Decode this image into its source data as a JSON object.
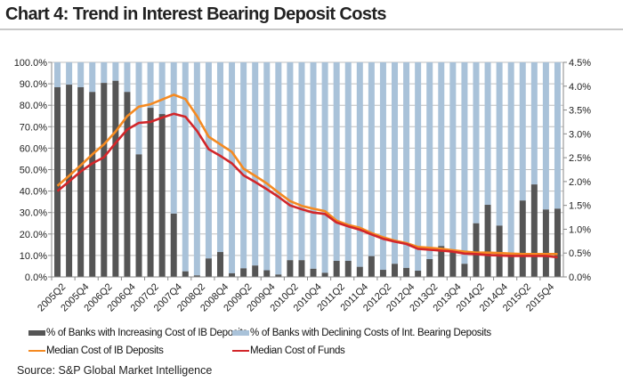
{
  "title": "Chart 4: Trend in Interest Bearing Deposit Costs",
  "source": "Source: S&P Global Market Intelligence",
  "colors": {
    "increasing": "#555555",
    "declining": "#a9c2d9",
    "ib_deposits": "#f58a21",
    "cost_of_funds": "#d2262a",
    "grid": "#bfbfbf"
  },
  "chart_data": {
    "type": "bar",
    "stacked": true,
    "title": "Chart 4: Trend in Interest Bearing Deposit Costs",
    "categories": [
      "2005Q2",
      "2005Q3",
      "2005Q4",
      "2006Q1",
      "2006Q2",
      "2006Q3",
      "2006Q4",
      "2007Q1",
      "2007Q2",
      "2007Q3",
      "2007Q4",
      "2008Q1",
      "2008Q2",
      "2008Q3",
      "2008Q4",
      "2009Q1",
      "2009Q2",
      "2009Q3",
      "2009Q4",
      "2010Q1",
      "2010Q2",
      "2010Q3",
      "2010Q4",
      "2011Q1",
      "2011Q2",
      "2011Q3",
      "2011Q4",
      "2012Q1",
      "2012Q2",
      "2012Q3",
      "2012Q4",
      "2013Q1",
      "2013Q2",
      "2013Q3",
      "2013Q4",
      "2014Q1",
      "2014Q2",
      "2014Q3",
      "2014Q4",
      "2015Q1",
      "2015Q2",
      "2015Q3",
      "2015Q4",
      "2016Q1"
    ],
    "tick_labels": [
      "2005Q2",
      "2005Q4",
      "2006Q2",
      "2006Q4",
      "2007Q2",
      "2007Q4",
      "2008Q2",
      "2008Q4",
      "2009Q2",
      "2009Q4",
      "2010Q2",
      "2010Q4",
      "2011Q2",
      "2011Q4",
      "2012Q2",
      "2012Q4",
      "2013Q2",
      "2013Q4",
      "2014Q2",
      "2014Q4",
      "2015Q2",
      "2015Q4"
    ],
    "y_left": {
      "range": [
        0,
        100
      ],
      "ticks": [
        "0.0%",
        "10.0%",
        "20.0%",
        "30.0%",
        "40.0%",
        "50.0%",
        "60.0%",
        "70.0%",
        "80.0%",
        "90.0%",
        "100.0%"
      ]
    },
    "y_right": {
      "range": [
        0,
        4.5
      ],
      "ticks": [
        "0.0%",
        "0.5%",
        "1.0%",
        "1.5%",
        "2.0%",
        "2.5%",
        "3.0%",
        "3.5%",
        "4.0%",
        "4.5%"
      ]
    },
    "grid": true,
    "legend_position": "bottom",
    "series": [
      {
        "name": "% of Banks with Increasing Cost of IB Deposits",
        "type": "bar",
        "axis": "left",
        "values": [
          88.4,
          89.6,
          88.4,
          86.2,
          90.4,
          91.4,
          86.2,
          57.1,
          78.8,
          75.9,
          29.5,
          2.6,
          0.7,
          8.6,
          11.6,
          1.7,
          4.0,
          5.3,
          3.1,
          1.1,
          7.8,
          7.8,
          3.8,
          1.9,
          7.5,
          7.5,
          4.7,
          9.7,
          3.3,
          6.1,
          4.2,
          2.9,
          8.3,
          14.4,
          12.5,
          6.1,
          25.0,
          33.6,
          23.9,
          11.0,
          35.6,
          43.1,
          31.4,
          31.8
        ]
      },
      {
        "name": "% of Banks with Declining Costs of Int. Bearing Deposits",
        "type": "bar",
        "axis": "left",
        "complement_of_first": true
      },
      {
        "name": "Median Cost of IB Deposits",
        "type": "line",
        "axis": "right",
        "values": [
          1.91,
          2.12,
          2.34,
          2.57,
          2.78,
          3.05,
          3.37,
          3.57,
          3.62,
          3.72,
          3.82,
          3.73,
          3.37,
          2.94,
          2.78,
          2.62,
          2.27,
          2.12,
          1.96,
          1.77,
          1.59,
          1.49,
          1.43,
          1.38,
          1.18,
          1.09,
          1.03,
          0.92,
          0.83,
          0.76,
          0.71,
          0.63,
          0.61,
          0.59,
          0.56,
          0.53,
          0.51,
          0.51,
          0.5,
          0.49,
          0.48,
          0.48,
          0.48,
          0.48
        ]
      },
      {
        "name": "Median Cost of Funds",
        "type": "line",
        "axis": "right",
        "values": [
          1.8,
          2.0,
          2.21,
          2.38,
          2.51,
          2.81,
          3.09,
          3.23,
          3.25,
          3.34,
          3.42,
          3.36,
          3.06,
          2.68,
          2.54,
          2.38,
          2.13,
          1.99,
          1.84,
          1.68,
          1.5,
          1.42,
          1.35,
          1.32,
          1.14,
          1.06,
          0.99,
          0.89,
          0.8,
          0.74,
          0.69,
          0.59,
          0.57,
          0.55,
          0.53,
          0.49,
          0.48,
          0.46,
          0.45,
          0.44,
          0.44,
          0.44,
          0.44,
          0.41
        ]
      }
    ]
  }
}
